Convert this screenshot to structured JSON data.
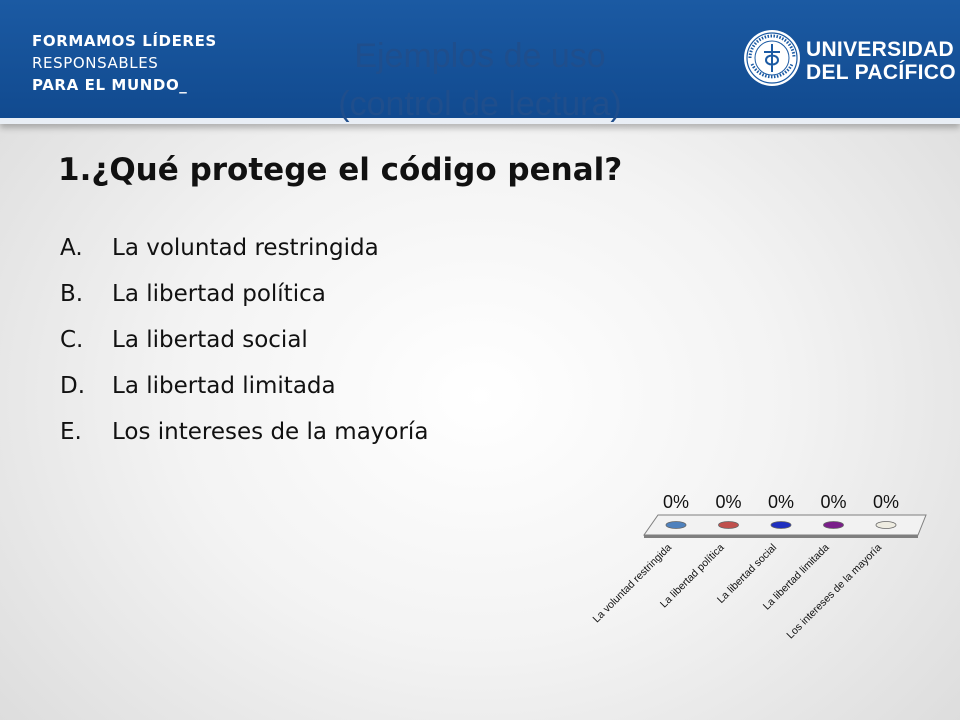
{
  "header": {
    "slogan": [
      "FORMAMOS LÍDERES",
      "RESPONSABLES",
      "PARA EL MUNDO_"
    ],
    "title_line1": "Ejemplos de uso",
    "title_line2": "(control de lectura)",
    "university_line1": "UNIVERSIDAD",
    "university_line2": "DEL PACÍFICO",
    "seal_text": "UNIVERSIDAD DEL PACÍFICO · LIMA - PERÚ"
  },
  "question": "1.¿Qué protege el código penal?",
  "options": [
    {
      "letter": "A.",
      "text": "La voluntad restringida"
    },
    {
      "letter": "B.",
      "text": "La libertad política"
    },
    {
      "letter": "C.",
      "text": "La libertad social"
    },
    {
      "letter": "D.",
      "text": "La libertad limitada"
    },
    {
      "letter": "E.",
      "text": "Los intereses de la mayoría"
    }
  ],
  "chart_data": {
    "type": "bar",
    "categories": [
      "La voluntad restringida",
      "La libertad política",
      "La libertad social",
      "La libertad limitada",
      "Los intereses de la mayoría"
    ],
    "values": [
      0,
      0,
      0,
      0,
      0
    ],
    "data_labels": [
      "0%",
      "0%",
      "0%",
      "0%",
      "0%"
    ],
    "colors": [
      "#4f81bd",
      "#c0504d",
      "#1f2fbf",
      "#7a1f8a",
      "#eeece1"
    ],
    "ylim": [
      0,
      100
    ],
    "grid": false,
    "legend": "none"
  }
}
